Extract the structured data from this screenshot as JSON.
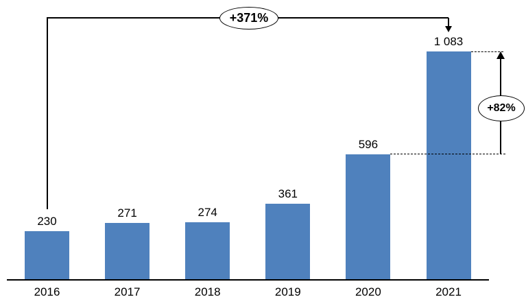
{
  "chart_data": {
    "type": "bar",
    "title": "",
    "xlabel": "",
    "ylabel": "",
    "categories": [
      "2016",
      "2017",
      "2018",
      "2019",
      "2020",
      "2021"
    ],
    "values": [
      230,
      271,
      274,
      361,
      596,
      1083
    ],
    "value_labels": [
      "230",
      "271",
      "274",
      "361",
      "596",
      "1 083"
    ],
    "bar_color": "#4F81BD",
    "ylim": [
      0,
      1100
    ],
    "grid": false,
    "legend": "none",
    "annotations": [
      {
        "label": "+371%",
        "shape": "ellipse",
        "from_category": "2016",
        "to_category": "2021"
      },
      {
        "label": "+82%",
        "shape": "ellipse",
        "from_category": "2020",
        "to_category": "2021"
      }
    ]
  }
}
